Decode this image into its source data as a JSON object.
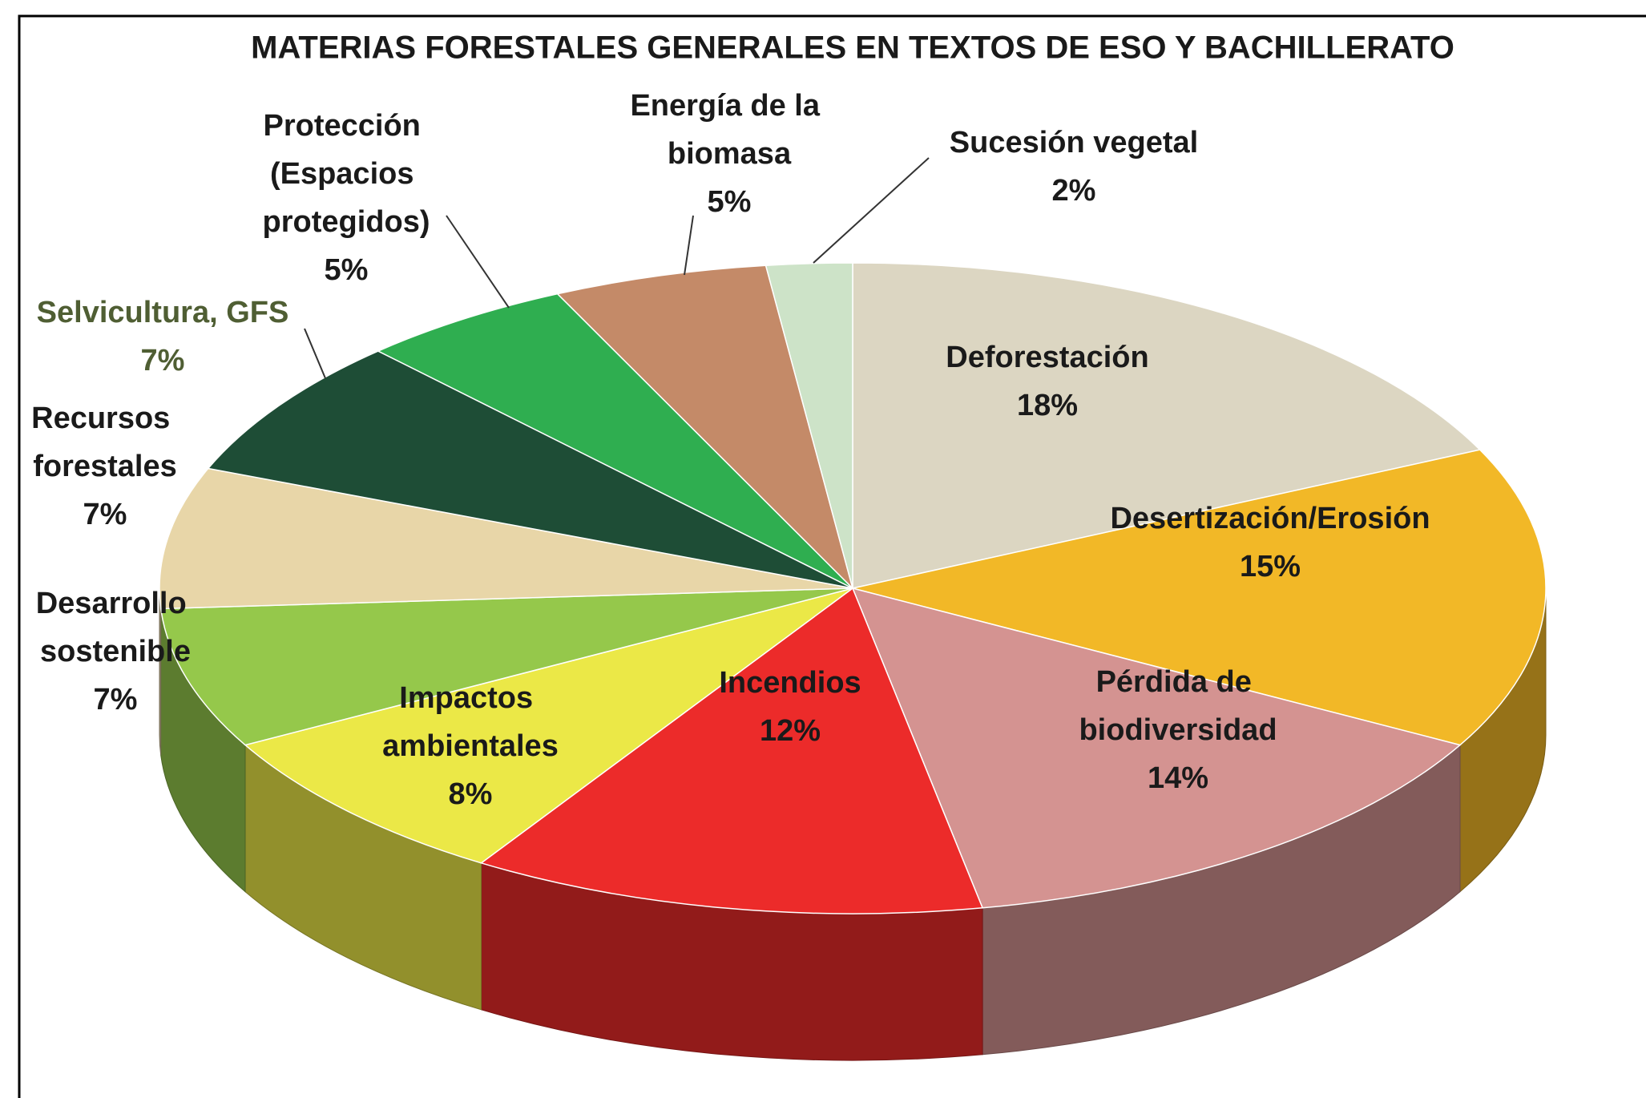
{
  "chart_data": {
    "type": "pie3d",
    "title": "MATERIAS FORESTALES GENERALES EN TEXTOS DE ESO Y BACHILLERATO",
    "categories": [
      "Deforestación",
      "Desertización/Erosión",
      "Pérdida de biodiversidad",
      "Incendios",
      "Impactos ambientales",
      "Desarrollo sostenible",
      "Recursos forestales",
      "Selvicultura, GFS",
      "Protección (Espacios protegidos)",
      "Energía de la biomasa",
      "Sucesión vegetal"
    ],
    "values": [
      18,
      15,
      14,
      12,
      8,
      7,
      7,
      7,
      5,
      5,
      2
    ],
    "value_labels": [
      "18%",
      "15%",
      "14%",
      "12%",
      "8%",
      "7%",
      "7%",
      "7%",
      "5%",
      "5%",
      "2%"
    ],
    "colors": [
      "#dcd6c2",
      "#f2b827",
      "#d49391",
      "#ec2b2a",
      "#ebe847",
      "#95c84b",
      "#e8d6a8",
      "#1e4d36",
      "#2fae50",
      "#c48a68",
      "#cde3c8"
    ]
  }
}
